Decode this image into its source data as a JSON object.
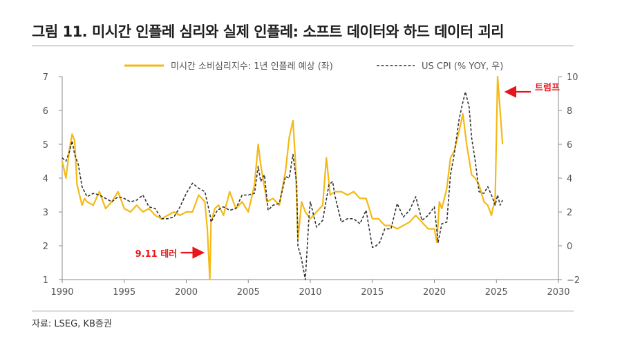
{
  "page": {
    "title": "그림 11. 미시간 인플레 심리와 실제 인플레: 소프트 데이터와 하드 데이터 괴리",
    "source": "자료: LSEG, KB증권"
  },
  "colors": {
    "gold": "#f5b914",
    "black": "#333333",
    "red": "#e8161b",
    "axis": "#888888"
  },
  "chart_data": {
    "type": "line",
    "title": "미시간 인플레 심리와 실제 인플레: 소프트 데이터와 하드 데이터 괴리",
    "xlabel": "",
    "ylabel_left": "",
    "ylabel_right": "",
    "xlim": [
      1990,
      2030
    ],
    "ylim_left": [
      1,
      7
    ],
    "ylim_right": [
      -2,
      10
    ],
    "x_ticks": [
      "1990",
      "1995",
      "2000",
      "2005",
      "2010",
      "2015",
      "2020",
      "2025",
      "2030"
    ],
    "y_left_ticks": [
      "1",
      "2",
      "3",
      "4",
      "5",
      "6",
      "7"
    ],
    "y_right_ticks": [
      "−2",
      "0",
      "2",
      "4",
      "6",
      "8",
      "10"
    ],
    "legend_position": "top",
    "series": [
      {
        "name": "미시간 소비심리지수: 1년 인플레 예상 (좌)",
        "axis": "left",
        "style": "solid",
        "x": [
          1990.0,
          1990.3,
          1990.6,
          1990.8,
          1991.0,
          1991.2,
          1991.4,
          1991.6,
          1991.8,
          1992.0,
          1992.5,
          1993.0,
          1993.5,
          1994.0,
          1994.5,
          1995.0,
          1995.5,
          1996.0,
          1996.5,
          1997.0,
          1997.5,
          1998.0,
          1998.5,
          1999.0,
          1999.5,
          2000.0,
          2000.5,
          2001.0,
          2001.5,
          2001.7,
          2001.9,
          2002.0,
          2002.3,
          2002.6,
          2003.0,
          2003.5,
          2004.0,
          2004.5,
          2005.0,
          2005.5,
          2005.8,
          2006.0,
          2006.5,
          2007.0,
          2007.5,
          2008.0,
          2008.3,
          2008.6,
          2008.8,
          2009.0,
          2009.3,
          2009.6,
          2010.0,
          2010.5,
          2011.0,
          2011.3,
          2011.6,
          2012.0,
          2012.5,
          2013.0,
          2013.5,
          2014.0,
          2014.5,
          2015.0,
          2015.5,
          2016.0,
          2016.5,
          2017.0,
          2017.5,
          2018.0,
          2018.5,
          2019.0,
          2019.5,
          2020.0,
          2020.2,
          2020.4,
          2020.6,
          2021.0,
          2021.3,
          2021.6,
          2022.0,
          2022.3,
          2022.6,
          2023.0,
          2023.3,
          2023.6,
          2024.0,
          2024.3,
          2024.6,
          2024.9,
          2025.1,
          2025.3,
          2025.5
        ],
        "values": [
          4.5,
          4.0,
          4.9,
          5.3,
          5.1,
          3.8,
          3.5,
          3.2,
          3.4,
          3.3,
          3.2,
          3.6,
          3.1,
          3.3,
          3.6,
          3.1,
          3.0,
          3.2,
          3.0,
          3.1,
          2.9,
          2.8,
          2.9,
          3.0,
          2.9,
          3.0,
          3.0,
          3.5,
          3.3,
          2.5,
          1.0,
          2.7,
          3.1,
          3.2,
          2.9,
          3.6,
          3.1,
          3.3,
          3.0,
          3.8,
          5.0,
          4.4,
          3.3,
          3.4,
          3.2,
          4.2,
          5.2,
          5.7,
          4.5,
          2.2,
          3.3,
          3.0,
          2.8,
          3.0,
          3.2,
          4.6,
          3.5,
          3.6,
          3.6,
          3.5,
          3.6,
          3.4,
          3.4,
          2.8,
          2.8,
          2.6,
          2.6,
          2.5,
          2.6,
          2.7,
          2.9,
          2.7,
          2.5,
          2.5,
          2.1,
          3.3,
          3.1,
          3.7,
          4.6,
          4.8,
          5.4,
          5.9,
          5.0,
          4.1,
          4.0,
          3.8,
          3.3,
          3.2,
          2.9,
          3.4,
          7.0,
          6.0,
          5.0
        ]
      },
      {
        "name": "US CPI (% YOY, 우)",
        "axis": "right",
        "style": "dashed",
        "x": [
          1990.0,
          1990.3,
          1990.6,
          1990.8,
          1991.0,
          1991.3,
          1991.6,
          1992.0,
          1992.5,
          1993.0,
          1993.5,
          1994.0,
          1994.5,
          1995.0,
          1995.5,
          1996.0,
          1996.5,
          1997.0,
          1997.5,
          1998.0,
          1998.5,
          1999.0,
          1999.5,
          2000.0,
          2000.5,
          2001.0,
          2001.5,
          2001.9,
          2002.0,
          2002.5,
          2003.0,
          2003.5,
          2004.0,
          2004.5,
          2005.0,
          2005.5,
          2005.8,
          2006.0,
          2006.3,
          2006.6,
          2007.0,
          2007.5,
          2008.0,
          2008.3,
          2008.6,
          2008.9,
          2009.0,
          2009.3,
          2009.6,
          2009.9,
          2010.0,
          2010.5,
          2011.0,
          2011.5,
          2011.8,
          2012.0,
          2012.5,
          2013.0,
          2013.5,
          2014.0,
          2014.5,
          2015.0,
          2015.3,
          2015.6,
          2016.0,
          2016.5,
          2017.0,
          2017.5,
          2018.0,
          2018.5,
          2019.0,
          2019.5,
          2020.0,
          2020.3,
          2020.6,
          2021.0,
          2021.3,
          2021.6,
          2022.0,
          2022.3,
          2022.5,
          2022.8,
          2023.0,
          2023.3,
          2023.6,
          2024.0,
          2024.3,
          2024.6,
          2024.9,
          2025.1,
          2025.3,
          2025.5
        ],
        "values": [
          5.2,
          5.0,
          5.6,
          6.2,
          5.4,
          4.8,
          3.5,
          2.9,
          3.1,
          3.0,
          2.8,
          2.6,
          2.9,
          2.8,
          2.6,
          2.7,
          3.0,
          2.3,
          2.2,
          1.6,
          1.6,
          1.7,
          2.3,
          3.1,
          3.7,
          3.4,
          3.2,
          1.9,
          1.4,
          2.1,
          2.3,
          2.1,
          2.2,
          3.0,
          3.0,
          3.1,
          4.7,
          3.8,
          4.2,
          2.1,
          2.4,
          2.5,
          4.1,
          4.0,
          5.4,
          3.7,
          0.0,
          -0.8,
          -2.0,
          1.8,
          2.6,
          1.1,
          1.5,
          3.6,
          3.8,
          2.9,
          1.4,
          1.6,
          1.6,
          1.3,
          2.1,
          -0.1,
          0.0,
          0.2,
          1.0,
          1.0,
          2.5,
          1.7,
          2.1,
          2.9,
          1.5,
          1.8,
          2.3,
          0.2,
          1.3,
          1.4,
          4.2,
          5.4,
          7.5,
          8.5,
          9.1,
          8.2,
          6.4,
          5.0,
          3.2,
          3.1,
          3.5,
          3.0,
          2.4,
          3.0,
          2.4,
          2.7
        ]
      }
    ],
    "annotations": [
      {
        "text": "9.11 테러",
        "x": 2001.9,
        "y": 1.0,
        "axis": "left"
      },
      {
        "text": "트럼프",
        "x": 2025.1,
        "y": 6.5,
        "axis": "left"
      }
    ]
  }
}
